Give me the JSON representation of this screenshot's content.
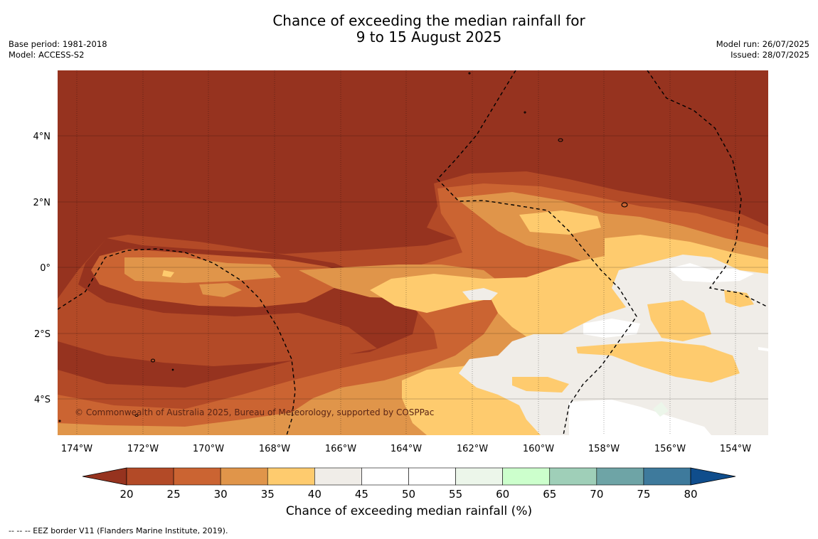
{
  "title": {
    "line1": "Chance of exceeding the median rainfall for",
    "line2": "9 to 15 August 2025"
  },
  "meta_left": {
    "base_period": "Base period: 1981-2018",
    "model": "Model: ACCESS-S2"
  },
  "meta_right": {
    "model_run": "Model run: 26/07/2025",
    "issued": "Issued: 28/07/2025"
  },
  "map": {
    "lon_labels": [
      "174°W",
      "172°W",
      "170°W",
      "168°W",
      "166°W",
      "164°W",
      "162°W",
      "160°W",
      "158°W",
      "156°W",
      "154°W"
    ],
    "lat_labels": [
      "4°N",
      "2°N",
      "0°",
      "2°S",
      "4°S"
    ],
    "copyright": "© Commonwealth of Australia 2025, Bureau of Meteorology, supported by COSPPac"
  },
  "colorbar": {
    "ticks": [
      "20",
      "25",
      "30",
      "35",
      "40",
      "45",
      "50",
      "55",
      "60",
      "65",
      "70",
      "75",
      "80"
    ],
    "colors": [
      "#b34a27",
      "#cb6432",
      "#e0954a",
      "#fecb6e",
      "#f0ede8",
      "#ffffff",
      "#ffffff",
      "#ecf6ea",
      "#ccffcc",
      "#9fcfb8",
      "#6ea4a6",
      "#3e7a9c"
    ],
    "under_color": "#96331f",
    "over_color": "#0f4d8c",
    "label": "Chance of exceeding median rainfall (%)"
  },
  "footnote": "--  --  -- EEZ border V11 (Flanders Marine Institute, 2019)."
}
